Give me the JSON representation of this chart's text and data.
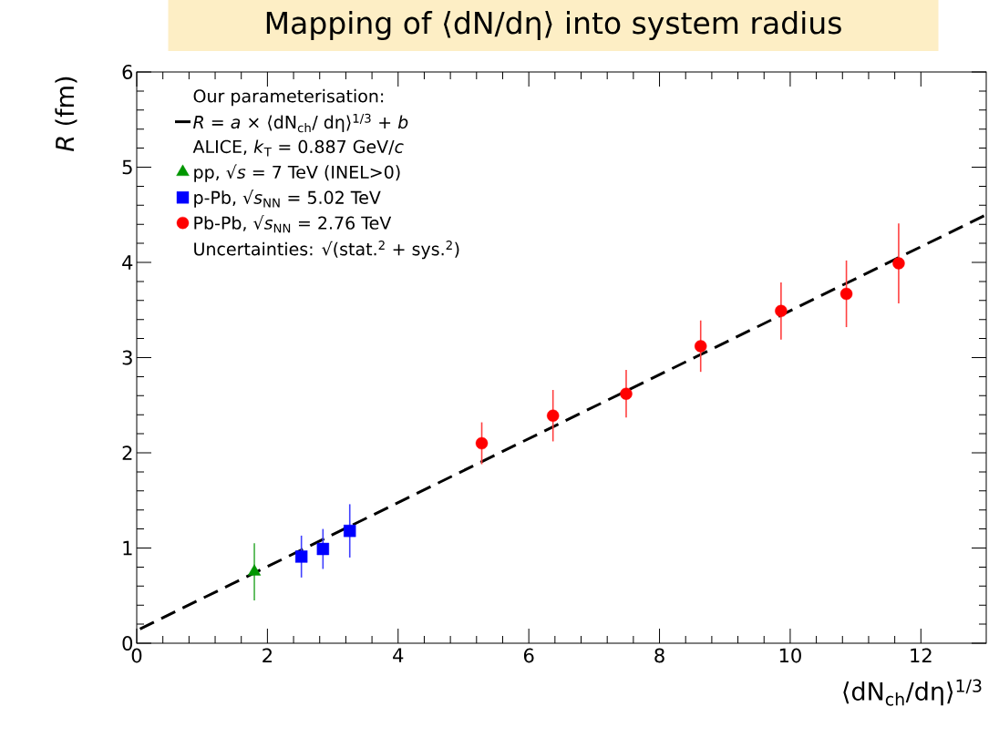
{
  "chart_data": {
    "type": "scatter",
    "title": "Mapping of ⟨dN/dη⟩ into system radius",
    "xlabel": "⟨dN$_{ch}$/dη⟩$^{1/3}$",
    "ylabel": "*R* (fm)",
    "annotations": [
      "Our parameterisation:",
      "ALICE, *k*$_{T}$ = 0.887 GeV/*c*",
      "Uncertainties: √(stat.$^{2}$ + sys.$^{2}$)"
    ],
    "xlim": [
      0,
      13
    ],
    "ylim": [
      0,
      6
    ],
    "xticks": [
      0,
      2,
      4,
      6,
      8,
      10,
      12
    ],
    "yticks": [
      0,
      1,
      2,
      3,
      4,
      5,
      6
    ],
    "legend": "top left",
    "series": [
      {
        "name": "*R* = *a* × ⟨dN$_{ch}$/ dη⟩$^{1/3}$ + *b*",
        "type": "line",
        "line_style": "dashed",
        "marker": "none",
        "color": "#000000",
        "x": [
          0.05,
          13
        ],
        "values": [
          0.15,
          4.5
        ]
      },
      {
        "name": "pp, √*s* = 7 TeV (INEL>0)",
        "marker": "triangle",
        "color": "#009600",
        "x": [
          1.8
        ],
        "values": [
          0.75
        ],
        "errors": [
          0.3
        ]
      },
      {
        "name": "p-Pb, √*s*$_{NN}$ = 5.02 TeV",
        "marker": "square",
        "color": "#0000ff",
        "x": [
          2.52,
          2.85,
          3.26
        ],
        "values": [
          0.91,
          0.99,
          1.18
        ],
        "errors": [
          0.22,
          0.21,
          0.28
        ]
      },
      {
        "name": "Pb-Pb, √*s*$_{NN}$ = 2.76 TeV",
        "marker": "circle",
        "color": "#ff0000",
        "x": [
          5.28,
          6.37,
          7.49,
          8.63,
          9.86,
          10.86,
          11.66
        ],
        "values": [
          2.1,
          2.39,
          2.62,
          3.12,
          3.49,
          3.67,
          3.99
        ],
        "errors": [
          0.22,
          0.27,
          0.25,
          0.27,
          0.3,
          0.35,
          0.42
        ]
      }
    ]
  }
}
